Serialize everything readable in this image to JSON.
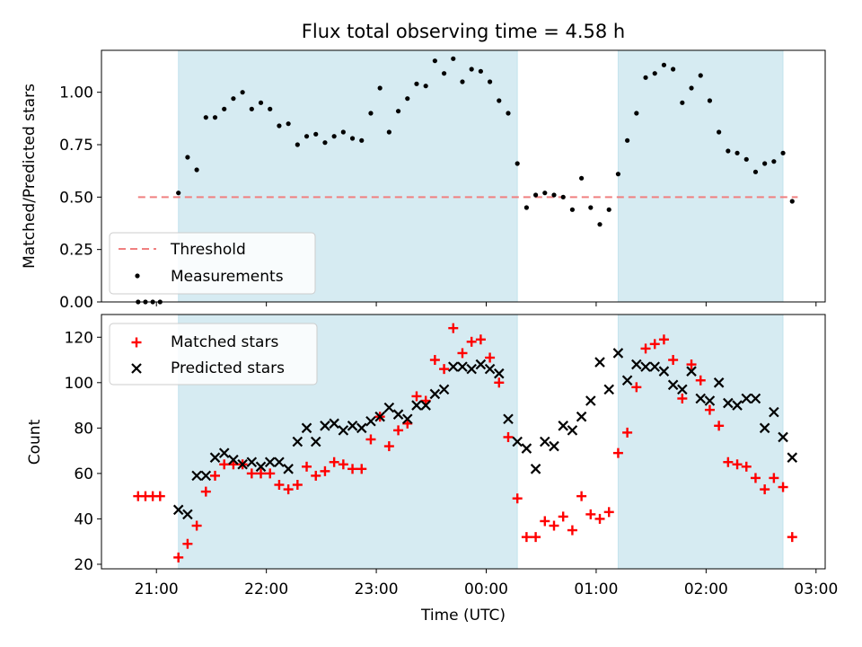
{
  "chart_data": [
    {
      "type": "scatter",
      "title": "Flux total observing time = 4.58 h",
      "xlabel": "",
      "ylabel": "Matched/Predicted stars",
      "xlim": [
        "20:30",
        "03:05"
      ],
      "ylim": [
        0,
        1.2
      ],
      "yticks": [
        "0.00",
        "0.25",
        "0.50",
        "0.75",
        "1.00"
      ],
      "grid": false,
      "legend_position": "bottom-left",
      "shaded_intervals": [
        [
          "21:12",
          "00:17"
        ],
        [
          "01:12",
          "02:42"
        ]
      ],
      "threshold": {
        "name": "Threshold",
        "value": 0.5,
        "x_range": [
          "20:50",
          "02:50"
        ],
        "color": "#f08080"
      },
      "series": [
        {
          "name": "Measurements",
          "color": "#000000",
          "x": [
            "20:50",
            "20:54",
            "20:58",
            "21:02",
            "21:12",
            "21:17",
            "21:22",
            "21:27",
            "21:32",
            "21:37",
            "21:42",
            "21:47",
            "21:52",
            "21:57",
            "22:02",
            "22:07",
            "22:12",
            "22:17",
            "22:22",
            "22:27",
            "22:32",
            "22:37",
            "22:42",
            "22:47",
            "22:52",
            "22:57",
            "23:02",
            "23:07",
            "23:12",
            "23:17",
            "23:22",
            "23:27",
            "23:32",
            "23:37",
            "23:42",
            "23:47",
            "23:52",
            "23:57",
            "00:02",
            "00:07",
            "00:12",
            "00:17",
            "00:22",
            "00:27",
            "00:32",
            "00:37",
            "00:42",
            "00:47",
            "00:52",
            "00:57",
            "01:02",
            "01:07",
            "01:12",
            "01:17",
            "01:22",
            "01:27",
            "01:32",
            "01:37",
            "01:42",
            "01:47",
            "01:52",
            "01:57",
            "02:02",
            "02:07",
            "02:12",
            "02:17",
            "02:22",
            "02:27",
            "02:32",
            "02:37",
            "02:42",
            "02:47"
          ],
          "y": [
            0.0,
            0.0,
            0.0,
            0.0,
            0.52,
            0.69,
            0.63,
            0.88,
            0.88,
            0.92,
            0.97,
            1.0,
            0.92,
            0.95,
            0.92,
            0.84,
            0.85,
            0.75,
            0.79,
            0.8,
            0.76,
            0.79,
            0.81,
            0.78,
            0.77,
            0.9,
            1.02,
            0.81,
            0.91,
            0.97,
            1.04,
            1.03,
            1.15,
            1.09,
            1.16,
            1.05,
            1.11,
            1.1,
            1.05,
            0.96,
            0.9,
            0.66,
            0.45,
            0.51,
            0.52,
            0.51,
            0.5,
            0.44,
            0.59,
            0.45,
            0.37,
            0.44,
            0.61,
            0.77,
            0.9,
            1.07,
            1.09,
            1.13,
            1.11,
            0.95,
            1.02,
            1.08,
            0.96,
            0.81,
            0.72,
            0.71,
            0.68,
            0.62,
            0.66,
            0.67,
            0.71,
            0.48
          ]
        }
      ]
    },
    {
      "type": "scatter",
      "title": "",
      "xlabel": "Time (UTC)",
      "ylabel": "Count",
      "xlim": [
        "20:30",
        "03:05"
      ],
      "xticks": [
        "21:00",
        "22:00",
        "23:00",
        "00:00",
        "01:00",
        "02:00",
        "03:00"
      ],
      "ylim": [
        18,
        130
      ],
      "yticks": [
        "20",
        "40",
        "60",
        "80",
        "100",
        "120"
      ],
      "grid": false,
      "legend_position": "top-left",
      "shaded_intervals": [
        [
          "21:12",
          "00:17"
        ],
        [
          "01:12",
          "02:42"
        ]
      ],
      "series": [
        {
          "name": "Matched stars",
          "marker": "plus",
          "color": "#ff0000",
          "x": [
            "20:50",
            "20:54",
            "20:58",
            "21:02",
            "21:12",
            "21:17",
            "21:22",
            "21:27",
            "21:32",
            "21:37",
            "21:42",
            "21:47",
            "21:52",
            "21:57",
            "22:02",
            "22:07",
            "22:12",
            "22:17",
            "22:22",
            "22:27",
            "22:32",
            "22:37",
            "22:42",
            "22:47",
            "22:52",
            "22:57",
            "23:02",
            "23:07",
            "23:12",
            "23:17",
            "23:22",
            "23:27",
            "23:32",
            "23:37",
            "23:42",
            "23:47",
            "23:52",
            "23:57",
            "00:02",
            "00:07",
            "00:12",
            "00:17",
            "00:22",
            "00:27",
            "00:32",
            "00:37",
            "00:42",
            "00:47",
            "00:52",
            "00:57",
            "01:02",
            "01:07",
            "01:12",
            "01:17",
            "01:22",
            "01:27",
            "01:32",
            "01:37",
            "01:42",
            "01:47",
            "01:52",
            "01:57",
            "02:02",
            "02:07",
            "02:12",
            "02:17",
            "02:22",
            "02:27",
            "02:32",
            "02:37",
            "02:42",
            "02:47"
          ],
          "y": [
            50,
            50,
            50,
            50,
            23,
            29,
            37,
            52,
            59,
            64,
            64,
            64,
            60,
            60,
            60,
            55,
            53,
            55,
            63,
            59,
            61,
            65,
            64,
            62,
            62,
            75,
            85,
            72,
            79,
            82,
            94,
            92,
            110,
            106,
            124,
            113,
            118,
            119,
            111,
            100,
            76,
            49,
            32,
            32,
            39,
            37,
            41,
            35,
            50,
            42,
            40,
            43,
            69,
            78,
            98,
            115,
            117,
            119,
            110,
            93,
            108,
            101,
            88,
            81,
            65,
            64,
            63,
            58,
            53,
            58,
            54,
            32
          ]
        },
        {
          "name": "Predicted stars",
          "marker": "x",
          "color": "#000000",
          "x": [
            "21:12",
            "21:17",
            "21:22",
            "21:27",
            "21:32",
            "21:37",
            "21:42",
            "21:47",
            "21:52",
            "21:57",
            "22:02",
            "22:07",
            "22:12",
            "22:17",
            "22:22",
            "22:27",
            "22:32",
            "22:37",
            "22:42",
            "22:47",
            "22:52",
            "22:57",
            "23:02",
            "23:07",
            "23:12",
            "23:17",
            "23:22",
            "23:27",
            "23:32",
            "23:37",
            "23:42",
            "23:47",
            "23:52",
            "23:57",
            "00:02",
            "00:07",
            "00:12",
            "00:17",
            "00:22",
            "00:27",
            "00:32",
            "00:37",
            "00:42",
            "00:47",
            "00:52",
            "00:57",
            "01:02",
            "01:07",
            "01:12",
            "01:17",
            "01:22",
            "01:27",
            "01:32",
            "01:37",
            "01:42",
            "01:47",
            "01:52",
            "01:57",
            "02:02",
            "02:07",
            "02:12",
            "02:17",
            "02:22",
            "02:27",
            "02:32",
            "02:37",
            "02:42",
            "02:47"
          ],
          "y": [
            44,
            42,
            59,
            59,
            67,
            69,
            66,
            64,
            65,
            63,
            65,
            65,
            62,
            74,
            80,
            74,
            81,
            82,
            79,
            81,
            80,
            83,
            85,
            89,
            86,
            84,
            90,
            90,
            95,
            97,
            107,
            107,
            106,
            108,
            106,
            104,
            84,
            74,
            71,
            62,
            74,
            72,
            81,
            79,
            85,
            92,
            109,
            97,
            113,
            101,
            108,
            107,
            107,
            105,
            99,
            97,
            105,
            93,
            92,
            100,
            91,
            90,
            93,
            93,
            80,
            87,
            76,
            67
          ]
        }
      ]
    }
  ]
}
